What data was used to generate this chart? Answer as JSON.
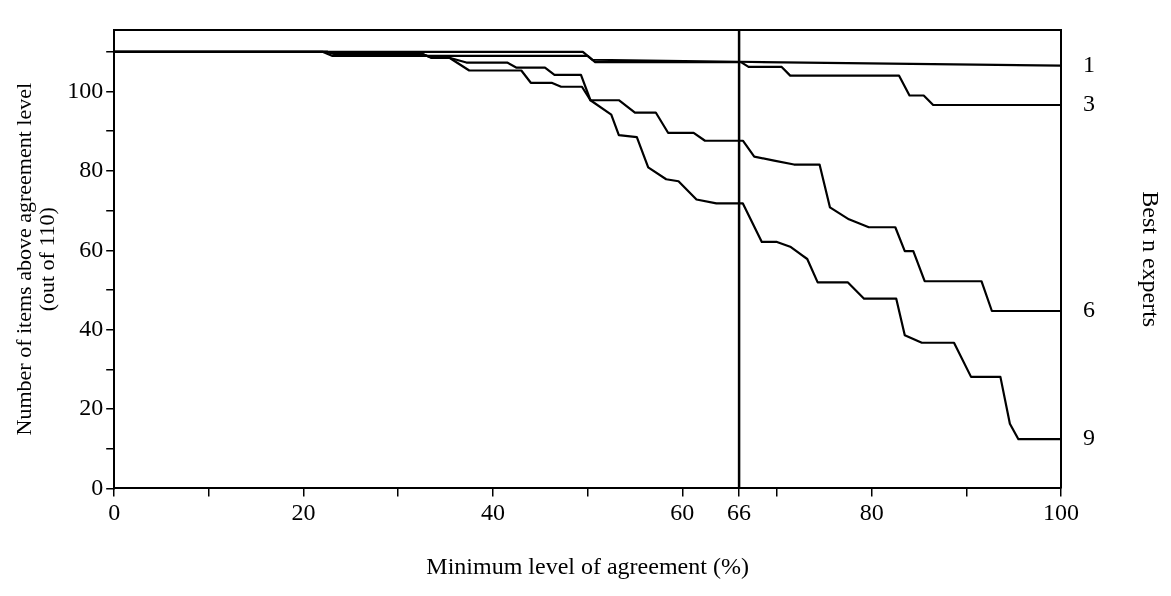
{
  "chart_data": {
    "type": "line",
    "xlabel": "Minimum level of agreement (%)",
    "ylabel": "Number of items above agreement level\n(out of 110)",
    "y2label": "Best n experts",
    "xlim": [
      0,
      100
    ],
    "xticks": [
      0,
      {
        "value": 10,
        "label": null
      },
      20,
      {
        "value": 30,
        "label": null
      },
      40,
      {
        "value": 50,
        "label": null
      },
      60,
      66,
      {
        "value": 70,
        "label": null
      },
      80,
      {
        "value": 90,
        "label": null
      },
      100
    ],
    "ylim": [
      0,
      115.5
    ],
    "yticks": [
      0,
      {
        "value": 10,
        "label": null
      },
      20,
      {
        "value": 30,
        "label": null
      },
      40,
      {
        "value": 50,
        "label": null
      },
      60,
      {
        "value": 70,
        "label": null
      },
      80,
      {
        "value": 90,
        "label": null
      },
      100,
      {
        "value": 110,
        "label": null
      }
    ],
    "grid": false,
    "legend": false,
    "marker": "none",
    "line_style": "solid",
    "ref_lines": [
      {
        "axis": "x",
        "value": 66,
        "color": "#000000"
      }
    ],
    "series": [
      {
        "name": "1",
        "color": "#000000",
        "x": [
          0,
          49.5,
          50.5,
          66,
          100
        ],
        "values": [
          110,
          110,
          108,
          107.5,
          106.5
        ]
      },
      {
        "name": "3",
        "color": "#000000",
        "x": [
          0,
          22,
          23,
          50,
          50.8,
          66.2,
          67,
          70.5,
          71.4,
          82.9,
          84,
          85.5,
          86.5,
          100
        ],
        "values": [
          110,
          110,
          109,
          109,
          107.4,
          107.4,
          106.2,
          106.2,
          104,
          104,
          99,
          99,
          96.6,
          96.6
        ]
      },
      {
        "name": "6",
        "color": "#000000",
        "x": [
          0,
          22.5,
          23.2,
          32.5,
          33.5,
          35.4,
          37.2,
          41.5,
          42.5,
          45.5,
          46.5,
          49.3,
          50.3,
          53.3,
          55,
          57.2,
          58.5,
          61.2,
          62.4,
          66.4,
          67.6,
          69.7,
          71.8,
          74.5,
          75.6,
          77.6,
          79.7,
          82.5,
          83.5,
          84.4,
          85.6,
          91.6,
          92.7,
          100
        ],
        "values": [
          110,
          110,
          109.5,
          109.5,
          108.5,
          108.5,
          107.3,
          107.3,
          106,
          106,
          104.2,
          104.2,
          97.8,
          97.8,
          94.7,
          94.7,
          89.6,
          89.6,
          87.6,
          87.6,
          83.6,
          82.6,
          81.6,
          81.6,
          70.8,
          67.8,
          65.8,
          65.8,
          59.8,
          59.8,
          52.2,
          52.2,
          44.7,
          44.7
        ]
      },
      {
        "name": "9",
        "color": "#000000",
        "x": [
          0,
          22.5,
          23.2,
          32.5,
          33.5,
          35.4,
          37.5,
          43,
          44,
          46.2,
          47.2,
          49.4,
          50.3,
          52.5,
          53.3,
          55.2,
          56.4,
          58.3,
          59.6,
          61.5,
          63.6,
          66.4,
          68.4,
          70,
          71.4,
          73.2,
          74.3,
          77.5,
          79.2,
          82.6,
          83.5,
          85.3,
          88.7,
          90.5,
          93.6,
          94.6,
          95.5,
          100
        ],
        "values": [
          110,
          110,
          109.5,
          109.5,
          108.5,
          108.5,
          105.3,
          105.3,
          102.2,
          102.2,
          101.2,
          101.2,
          97.8,
          94.2,
          89,
          88.5,
          80.9,
          77.9,
          77.4,
          72.8,
          71.8,
          71.8,
          62.1,
          62.1,
          60.9,
          57.8,
          51.9,
          51.9,
          47.8,
          47.8,
          38.6,
          36.7,
          36.7,
          28.1,
          28.1,
          16.3,
          12.4,
          12.4
        ]
      }
    ]
  }
}
